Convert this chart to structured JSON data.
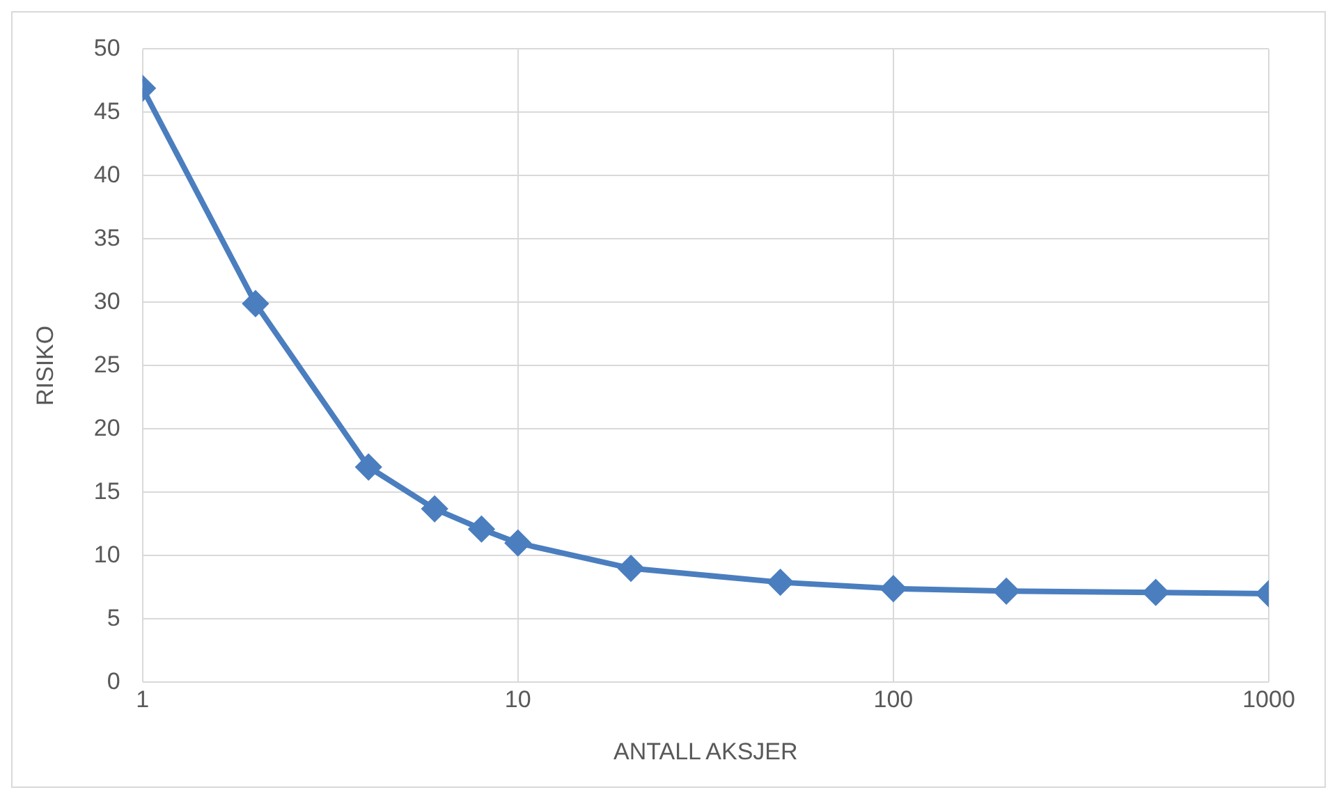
{
  "chart_data": {
    "type": "line",
    "xlabel": "ANTALL AKSJER",
    "ylabel": "RISIKO",
    "x": [
      1,
      2,
      4,
      6,
      8,
      10,
      20,
      50,
      100,
      200,
      500,
      1000
    ],
    "series": [
      {
        "color": "#4a7ebf",
        "values": [
          46.9,
          29.9,
          17.0,
          13.7,
          12.1,
          11.0,
          9.0,
          7.9,
          7.4,
          7.2,
          7.1,
          7.0
        ]
      }
    ],
    "log": "x",
    "xlim": [
      1,
      1000
    ],
    "xticks": [
      1,
      10,
      100,
      1000
    ],
    "ylim": [
      0,
      50
    ],
    "yticks": [
      0,
      5,
      10,
      15,
      20,
      25,
      30,
      35,
      40,
      45,
      50
    ],
    "grid": true,
    "legend": false,
    "marker": "diamond",
    "line_style": "solid"
  }
}
